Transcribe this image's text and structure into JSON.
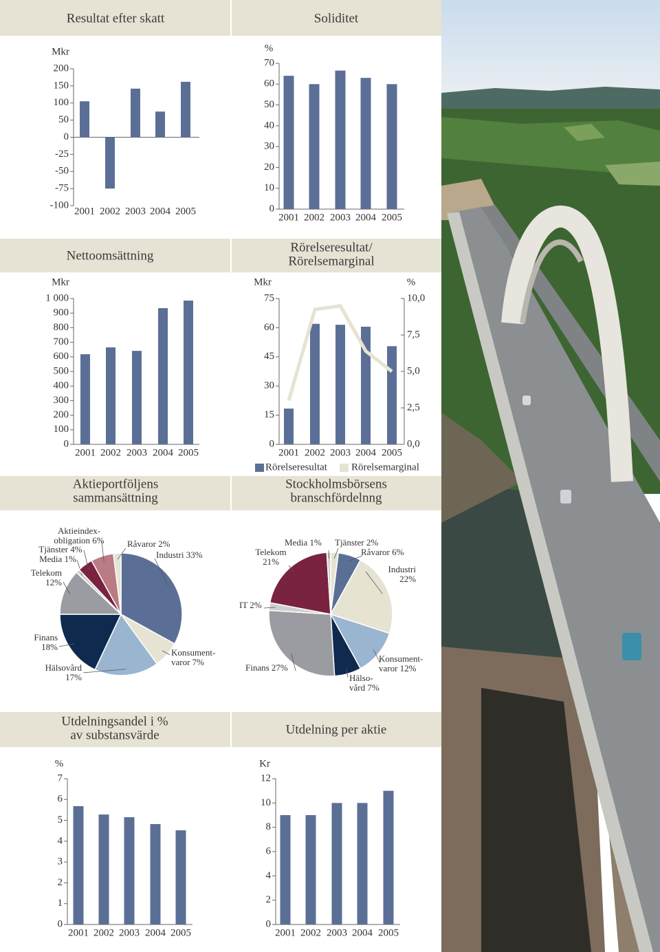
{
  "chart_data": [
    {
      "type": "bar",
      "title": "Resultat efter skatt",
      "y_label": "Mkr",
      "categories": [
        "2001",
        "2002",
        "2003",
        "2004",
        "2005"
      ],
      "values": [
        105,
        -75,
        142,
        75,
        162
      ],
      "color": "#5b6f96",
      "ylim": [
        -100,
        200
      ],
      "yticks": [
        -100,
        -75,
        -50,
        -25,
        0,
        50,
        100,
        150,
        200
      ],
      "scale": "tick-spaced"
    },
    {
      "type": "bar",
      "title": "Soliditet",
      "y_label": "%",
      "categories": [
        "2001",
        "2002",
        "2003",
        "2004",
        "2005"
      ],
      "values": [
        64,
        60,
        66.5,
        63,
        60
      ],
      "color": "#5b6f96",
      "ylim": [
        0,
        70
      ],
      "yticks": [
        0,
        10,
        20,
        30,
        40,
        50,
        60,
        70
      ]
    },
    {
      "type": "bar",
      "title": "Nettoomsättning",
      "y_label": "Mkr",
      "categories": [
        "2001",
        "2002",
        "2003",
        "2004",
        "2005"
      ],
      "values": [
        618,
        665,
        641,
        934,
        986
      ],
      "color": "#5b6f96",
      "ylim": [
        0,
        1000
      ],
      "yticks": [
        0,
        100,
        200,
        300,
        400,
        500,
        600,
        700,
        800,
        900,
        {
          "value": 1000,
          "label": "1 000"
        }
      ]
    },
    {
      "type": "bar",
      "title": [
        "Rörelseresultat/",
        "Rörelsemarginal"
      ],
      "y_label": "Mkr",
      "y2_label": "%",
      "categories": [
        "2001",
        "2002",
        "2003",
        "2004",
        "2005"
      ],
      "series": [
        {
          "name": "Rörelseresultat",
          "color": "#5b6f96",
          "values": [
            18.4,
            62,
            61.5,
            60.5,
            50.5
          ]
        },
        {
          "name": "Rörelsemarginal",
          "color": "#e6e3d2",
          "type": "line",
          "axis": "y2",
          "values": [
            3.0,
            9.25,
            9.5,
            6.4,
            5.0
          ]
        }
      ],
      "ylim": [
        0,
        75
      ],
      "yticks": [
        0,
        15,
        30,
        45,
        60,
        75
      ],
      "y2lim": [
        0,
        10
      ],
      "y2ticks": [
        {
          "value": 0,
          "label": "0,0"
        },
        {
          "value": 2.5,
          "label": "2,5"
        },
        {
          "value": 5,
          "label": "5,0"
        },
        {
          "value": 7.5,
          "label": "7,5"
        },
        {
          "value": 10,
          "label": "10,0"
        }
      ],
      "legend": "bottom"
    },
    {
      "type": "pie",
      "title": [
        "Aktieportföljens",
        "sammansättning"
      ],
      "labels": [
        [
          "Industri 33%"
        ],
        [
          "Konsument-",
          "varor 7%"
        ],
        [
          "Hälsovård",
          "17%"
        ],
        [
          "Finans",
          "18%"
        ],
        [
          "Telekom",
          "12%"
        ],
        [
          "Media 1%"
        ],
        [
          "Tjänster 4%"
        ],
        [
          "Aktieindex-",
          "obligation 6%"
        ],
        [
          "Råvaror 2%"
        ]
      ],
      "values": [
        33,
        7,
        17,
        18,
        12,
        1,
        4,
        6,
        2
      ],
      "colors": [
        "#5b6f96",
        "#e6e3d2",
        "#9ab5d0",
        "#0f2a4f",
        "#9a9ca1",
        "#cfcfcf",
        "#7a2340",
        "#b97b84",
        "#e6e3d2"
      ]
    },
    {
      "type": "pie",
      "title": [
        "Stockholmsbörsens",
        "branschfördelnng"
      ],
      "labels": [
        [
          "Tjänster 2%"
        ],
        [
          "Råvaror 6%"
        ],
        [
          "Industri",
          "22%"
        ],
        [
          "Konsument-",
          "varor 12%"
        ],
        [
          "Hälso-",
          "vård 7%"
        ],
        [
          "Finans 27%"
        ],
        [
          "IT 2%"
        ],
        [
          "Telekom",
          "21%"
        ],
        [
          "Media 1%"
        ]
      ],
      "values": [
        2,
        6,
        22,
        12,
        7,
        27,
        2,
        21,
        1
      ],
      "colors": [
        "#e6e3d2",
        "#5b6f96",
        "#e6e3d2",
        "#9ab5d0",
        "#0f2a4f",
        "#9a9ca1",
        "#cfcfcf",
        "#7a2340",
        "#cfcfcf"
      ]
    },
    {
      "type": "bar",
      "title": [
        "Utdelningsandel i %",
        "av substansvärde"
      ],
      "y_label": "%",
      "categories": [
        "2001",
        "2002",
        "2003",
        "2004",
        "2005"
      ],
      "values": [
        5.68,
        5.28,
        5.15,
        4.82,
        4.52
      ],
      "color": "#5b6f96",
      "ylim": [
        0,
        7
      ],
      "yticks": [
        0,
        1,
        2,
        3,
        4,
        5,
        6,
        7
      ]
    },
    {
      "type": "bar",
      "title": "Utdelning per aktie",
      "y_label": "Kr",
      "categories": [
        "2001",
        "2002",
        "2003",
        "2004",
        "2005"
      ],
      "values": [
        9,
        9,
        10,
        10,
        11
      ],
      "color": "#5b6f96",
      "ylim": [
        0,
        12
      ],
      "yticks": [
        0,
        2,
        4,
        6,
        8,
        10,
        12
      ]
    }
  ]
}
